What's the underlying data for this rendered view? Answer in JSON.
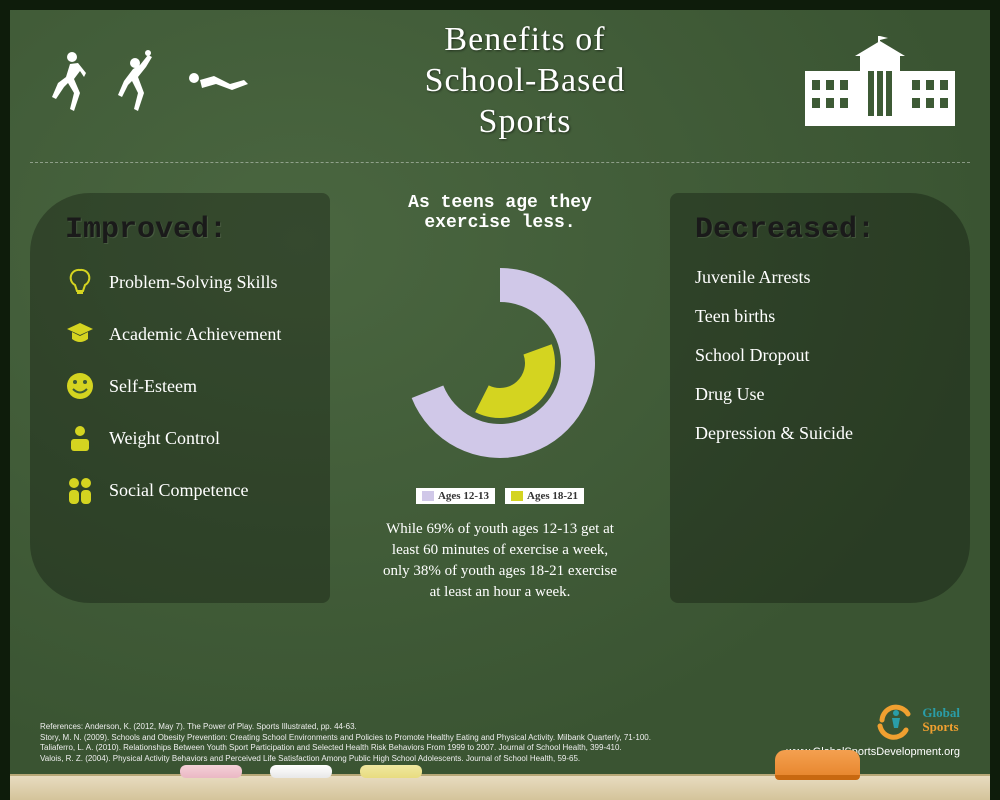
{
  "title": "Benefits of\nSchool-Based\nSports",
  "colors": {
    "board": "#3d5a35",
    "accent": "#d4d420",
    "panel_bg": "rgba(0,0,0,0.28)",
    "text": "#ffffff",
    "heading_dark": "#1a1a1a",
    "outer_ring": "#d0c8e8",
    "inner_ring": "#d4d420"
  },
  "improved": {
    "heading": "Improved:",
    "items": [
      {
        "icon": "bulb",
        "label": "Problem-Solving Skills"
      },
      {
        "icon": "grad",
        "label": "Academic Achievement"
      },
      {
        "icon": "smile",
        "label": "Self-Esteem"
      },
      {
        "icon": "scale",
        "label": "Weight Control"
      },
      {
        "icon": "people",
        "label": "Social Competence"
      }
    ]
  },
  "decreased": {
    "heading": "Decreased:",
    "items": [
      "Juvenile Arrests",
      "Teen births",
      "School Dropout",
      "Drug Use",
      "Depression & Suicide"
    ]
  },
  "center": {
    "heading": "As teens age they exercise less.",
    "chart": {
      "type": "nested-donut",
      "outer": {
        "label": "Ages 12-13",
        "color": "#d0c8e8",
        "percent": 69,
        "start_deg": -90,
        "thickness": 34,
        "radius": 95
      },
      "inner": {
        "label": "Ages 18-21",
        "color": "#d4d420",
        "percent": 38,
        "start_deg": -20,
        "thickness": 30,
        "radius": 55
      },
      "gap_color": "#3d5a35"
    },
    "legend": [
      {
        "swatch": "#d0c8e8",
        "label": "Ages 12-13"
      },
      {
        "swatch": "#d4d420",
        "label": "Ages 18-21"
      }
    ],
    "blurb": "While 69% of youth ages 12-13 get at least 60 minutes of exercise a week, only 38% of youth ages 18-21 exercise at least an hour a week."
  },
  "logo": {
    "line1": "Global",
    "line2": "Sports"
  },
  "url": "www.GlobalSportsDevelopment.org",
  "refs": [
    "References: Anderson, K. (2012, May 7). The Power of Play. Sports Illustrated, pp. 44-63.",
    "Story, M. N. (2009). Schools and Obesity Prevention: Creating School Environments and Policies to Promote Healthy Eating and Physical Activity. Milbank Quarterly, 71-100.",
    "Taliaferro, L. A. (2010). Relationships Between Youth Sport Participation and Selected Health Risk Behaviors From 1999 to 2007. Journal of School Health, 399-410.",
    "Valois, R. Z. (2004). Physical Activity Behaviors and Perceived Life Satisfaction Among Public High School Adolescents. Journal of School Health, 59-65."
  ]
}
